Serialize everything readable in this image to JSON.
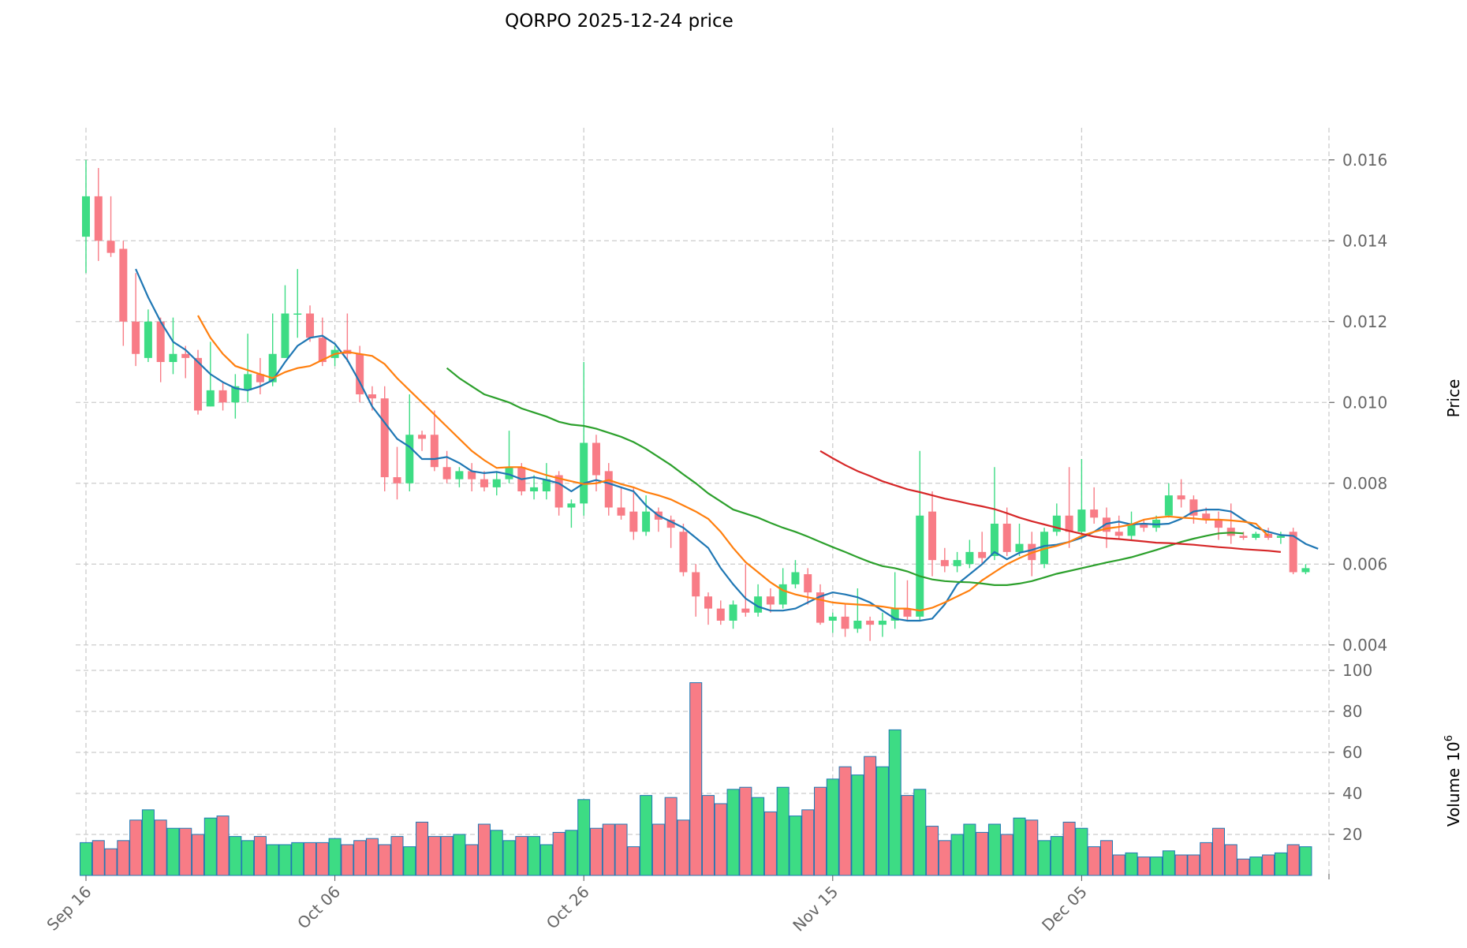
{
  "chart_data": {
    "type": "candlestick",
    "title": "QORPO  2025-12-24  price",
    "ylabel_price": "Price",
    "ylabel_volume": "Volume",
    "volume_unit": "10",
    "volume_exponent": "6",
    "x_tick_labels": [
      "Sep 16",
      "Oct 06",
      "Oct 26",
      "Nov 15",
      "Dec 05"
    ],
    "price_ticks": [
      "0.004",
      "0.006",
      "0.008",
      "0.010",
      "0.012",
      "0.014",
      "0.016"
    ],
    "volume_ticks": [
      "20",
      "40",
      "60",
      "80",
      "100"
    ],
    "price_range": [
      0.0038,
      0.0166
    ],
    "volume_range": [
      0,
      100
    ],
    "colors": {
      "up": "#3ddc84",
      "down": "#f87c86",
      "ma_short": "#1f77b4",
      "ma_mid": "#ff7f0e",
      "ma_long": "#2ca02c",
      "ma_longest": "#d62728"
    },
    "ohlcv": [
      [
        "Sep 16",
        0.0141,
        0.016,
        0.0132,
        0.0151,
        16
      ],
      [
        "Sep 17",
        0.0151,
        0.0158,
        0.0135,
        0.014,
        17
      ],
      [
        "Sep 18",
        0.014,
        0.0151,
        0.0136,
        0.0137,
        13
      ],
      [
        "Sep 19",
        0.0138,
        0.014,
        0.0114,
        0.012,
        17
      ],
      [
        "Sep 20",
        0.012,
        0.0132,
        0.0109,
        0.0112,
        27
      ],
      [
        "Sep 21",
        0.0111,
        0.0123,
        0.011,
        0.012,
        32
      ],
      [
        "Sep 22",
        0.012,
        0.0121,
        0.0105,
        0.011,
        27
      ],
      [
        "Sep 23",
        0.011,
        0.0121,
        0.0107,
        0.0112,
        23
      ],
      [
        "Sep 24",
        0.0112,
        0.0114,
        0.0106,
        0.0111,
        23
      ],
      [
        "Sep 25",
        0.0111,
        0.0113,
        0.0097,
        0.0098,
        20
      ],
      [
        "Sep 26",
        0.0099,
        0.0115,
        0.0099,
        0.0103,
        28
      ],
      [
        "Sep 27",
        0.0103,
        0.0105,
        0.0098,
        0.01,
        29
      ],
      [
        "Sep 28",
        0.01,
        0.0107,
        0.0096,
        0.0104,
        19
      ],
      [
        "Sep 29",
        0.0103,
        0.0117,
        0.01,
        0.0107,
        17
      ],
      [
        "Sep 30",
        0.0107,
        0.0111,
        0.0102,
        0.0105,
        19
      ],
      [
        "Oct 01",
        0.0105,
        0.0122,
        0.0104,
        0.0112,
        15
      ],
      [
        "Oct 02",
        0.0111,
        0.0129,
        0.0111,
        0.0122,
        15
      ],
      [
        "Oct 03",
        0.0122,
        0.0133,
        0.0116,
        0.0122,
        16
      ],
      [
        "Oct 04",
        0.0122,
        0.0124,
        0.0115,
        0.0116,
        16
      ],
      [
        "Oct 05",
        0.0116,
        0.0121,
        0.0109,
        0.011,
        16
      ],
      [
        "Oct 06",
        0.0111,
        0.0114,
        0.0109,
        0.0113,
        18
      ],
      [
        "Oct 07",
        0.0113,
        0.0122,
        0.011,
        0.0112,
        15
      ],
      [
        "Oct 08",
        0.0112,
        0.0114,
        0.01,
        0.0102,
        17
      ],
      [
        "Oct 09",
        0.0102,
        0.0104,
        0.0098,
        0.0101,
        18
      ],
      [
        "Oct 10",
        0.0101,
        0.0104,
        0.0078,
        0.00815,
        15
      ],
      [
        "Oct 11",
        0.00815,
        0.0089,
        0.0076,
        0.008,
        19
      ],
      [
        "Oct 12",
        0.008,
        0.0102,
        0.0078,
        0.0092,
        14
      ],
      [
        "Oct 13",
        0.0092,
        0.0093,
        0.0088,
        0.0091,
        26
      ],
      [
        "Oct 14",
        0.0092,
        0.0098,
        0.0083,
        0.0084,
        19
      ],
      [
        "Oct 15",
        0.0084,
        0.0088,
        0.008,
        0.0081,
        19
      ],
      [
        "Oct 16",
        0.0081,
        0.0084,
        0.0079,
        0.0083,
        20
      ],
      [
        "Oct 17",
        0.0083,
        0.0085,
        0.0078,
        0.0081,
        15
      ],
      [
        "Oct 18",
        0.0081,
        0.0083,
        0.0078,
        0.0079,
        25
      ],
      [
        "Oct 19",
        0.0079,
        0.0083,
        0.0077,
        0.0081,
        22
      ],
      [
        "Oct 20",
        0.0081,
        0.0093,
        0.008,
        0.0084,
        17
      ],
      [
        "Oct 21",
        0.0084,
        0.0085,
        0.0077,
        0.0078,
        19
      ],
      [
        "Oct 22",
        0.0078,
        0.0082,
        0.0076,
        0.0079,
        19
      ],
      [
        "Oct 23",
        0.0078,
        0.0085,
        0.0076,
        0.0081,
        15
      ],
      [
        "Oct 24",
        0.0082,
        0.0083,
        0.0072,
        0.0074,
        21
      ],
      [
        "Oct 25",
        0.0074,
        0.0076,
        0.0069,
        0.0075,
        22
      ],
      [
        "Oct 26",
        0.0075,
        0.011,
        0.0072,
        0.009,
        37
      ],
      [
        "Oct 27",
        0.009,
        0.0092,
        0.0078,
        0.0082,
        23
      ],
      [
        "Oct 28",
        0.0083,
        0.0085,
        0.0072,
        0.0074,
        25
      ],
      [
        "Oct 29",
        0.0074,
        0.0079,
        0.0071,
        0.0072,
        25
      ],
      [
        "Oct 30",
        0.0073,
        0.0079,
        0.0066,
        0.0068,
        14
      ],
      [
        "Oct 31",
        0.0068,
        0.0077,
        0.0067,
        0.0073,
        39
      ],
      [
        "Nov 01",
        0.0073,
        0.0074,
        0.0068,
        0.0071,
        25
      ],
      [
        "Nov 02",
        0.0071,
        0.0072,
        0.0064,
        0.0069,
        38
      ],
      [
        "Nov 03",
        0.0068,
        0.007,
        0.0057,
        0.0058,
        27
      ],
      [
        "Nov 04",
        0.0058,
        0.006,
        0.0047,
        0.0052,
        94
      ],
      [
        "Nov 05",
        0.0052,
        0.0053,
        0.0045,
        0.0049,
        39
      ],
      [
        "Nov 06",
        0.0049,
        0.0051,
        0.0045,
        0.0046,
        35
      ],
      [
        "Nov 07",
        0.0046,
        0.0051,
        0.0044,
        0.005,
        42
      ],
      [
        "Nov 08",
        0.0049,
        0.006,
        0.0047,
        0.0048,
        43
      ],
      [
        "Nov 09",
        0.0048,
        0.0055,
        0.0047,
        0.0052,
        38
      ],
      [
        "Nov 10",
        0.0052,
        0.0054,
        0.0048,
        0.005,
        31
      ],
      [
        "Nov 11",
        0.005,
        0.0059,
        0.0049,
        0.0055,
        43
      ],
      [
        "Nov 12",
        0.0055,
        0.0061,
        0.0054,
        0.0058,
        29
      ],
      [
        "Nov 13",
        0.00575,
        0.0059,
        0.005,
        0.0053,
        32
      ],
      [
        "Nov 14",
        0.0053,
        0.0055,
        0.0045,
        0.00455,
        43
      ],
      [
        "Nov 15",
        0.0046,
        0.0048,
        0.0043,
        0.0047,
        47
      ],
      [
        "Nov 16",
        0.0047,
        0.005,
        0.0042,
        0.0044,
        53
      ],
      [
        "Nov 17",
        0.0044,
        0.0054,
        0.0043,
        0.0046,
        49
      ],
      [
        "Nov 18",
        0.0046,
        0.0047,
        0.0041,
        0.0045,
        58
      ],
      [
        "Nov 19",
        0.0045,
        0.0048,
        0.0042,
        0.0046,
        53
      ],
      [
        "Nov 20",
        0.0046,
        0.0058,
        0.0044,
        0.0049,
        71
      ],
      [
        "Nov 21",
        0.0049,
        0.0056,
        0.0046,
        0.0047,
        39
      ],
      [
        "Nov 22",
        0.0047,
        0.0088,
        0.0046,
        0.0072,
        42
      ],
      [
        "Nov 23",
        0.0073,
        0.0078,
        0.0057,
        0.0061,
        24
      ],
      [
        "Nov 24",
        0.0061,
        0.0064,
        0.0058,
        0.00595,
        17
      ],
      [
        "Nov 25",
        0.00595,
        0.0063,
        0.0058,
        0.0061,
        20
      ],
      [
        "Nov 26",
        0.006,
        0.0066,
        0.0059,
        0.0063,
        25
      ],
      [
        "Nov 27",
        0.0063,
        0.0068,
        0.006,
        0.00615,
        21
      ],
      [
        "Nov 28",
        0.0062,
        0.0084,
        0.0061,
        0.007,
        25
      ],
      [
        "Nov 29",
        0.007,
        0.0074,
        0.0062,
        0.0063,
        20
      ],
      [
        "Nov 30",
        0.0063,
        0.007,
        0.0062,
        0.0065,
        28
      ],
      [
        "Dec 01",
        0.0065,
        0.0068,
        0.0057,
        0.0061,
        27
      ],
      [
        "Dec 02",
        0.006,
        0.0069,
        0.0059,
        0.0068,
        17
      ],
      [
        "Dec 03",
        0.0068,
        0.0075,
        0.0067,
        0.0072,
        19
      ],
      [
        "Dec 04",
        0.0072,
        0.0084,
        0.0064,
        0.0068,
        26
      ],
      [
        "Dec 05",
        0.0068,
        0.0086,
        0.0067,
        0.00735,
        23
      ],
      [
        "Dec 06",
        0.00735,
        0.0079,
        0.007,
        0.00715,
        14
      ],
      [
        "Dec 07",
        0.00715,
        0.0074,
        0.0064,
        0.0068,
        17
      ],
      [
        "Dec 08",
        0.0068,
        0.0072,
        0.0066,
        0.0067,
        10
      ],
      [
        "Dec 09",
        0.0067,
        0.0073,
        0.0066,
        0.007,
        11
      ],
      [
        "Dec 10",
        0.007,
        0.0071,
        0.0068,
        0.0069,
        9
      ],
      [
        "Dec 11",
        0.0069,
        0.0072,
        0.0068,
        0.0071,
        9
      ],
      [
        "Dec 12",
        0.0072,
        0.008,
        0.00715,
        0.0077,
        12
      ],
      [
        "Dec 13",
        0.0077,
        0.0081,
        0.0074,
        0.0076,
        10
      ],
      [
        "Dec 14",
        0.0076,
        0.0077,
        0.007,
        0.0072,
        10
      ],
      [
        "Dec 15",
        0.00725,
        0.0074,
        0.007,
        0.0071,
        16
      ],
      [
        "Dec 16",
        0.0071,
        0.0073,
        0.0066,
        0.0069,
        23
      ],
      [
        "Dec 17",
        0.0069,
        0.0075,
        0.0065,
        0.0067,
        15
      ],
      [
        "Dec 18",
        0.0067,
        0.0068,
        0.0066,
        0.00665,
        8
      ],
      [
        "Dec 19",
        0.00665,
        0.0068,
        0.0066,
        0.00675,
        9
      ],
      [
        "Dec 20",
        0.00675,
        0.0069,
        0.0066,
        0.00665,
        10
      ],
      [
        "Dec 21",
        0.00665,
        0.0068,
        0.0065,
        0.0067,
        11
      ],
      [
        "Dec 22",
        0.0068,
        0.0069,
        0.00575,
        0.0058,
        15
      ],
      [
        "Dec 23",
        0.0058,
        0.006,
        0.00575,
        0.0059,
        14
      ]
    ],
    "series": [
      {
        "name": "MA short",
        "color": "#1f77b4",
        "start_index": 4,
        "values": [
          0.0133,
          0.0126,
          0.012,
          0.0115,
          0.0113,
          0.011,
          0.0107,
          0.0105,
          0.01035,
          0.0103,
          0.0104,
          0.01055,
          0.011,
          0.0114,
          0.0116,
          0.01165,
          0.01145,
          0.01105,
          0.0105,
          0.0099,
          0.0095,
          0.0091,
          0.0089,
          0.0086,
          0.0086,
          0.00865,
          0.0085,
          0.0083,
          0.00825,
          0.00828,
          0.00822,
          0.0081,
          0.00815,
          0.00808,
          0.008,
          0.0078,
          0.008,
          0.00808,
          0.008,
          0.0079,
          0.0078,
          0.00745,
          0.0072,
          0.00705,
          0.0069,
          0.00665,
          0.0064,
          0.0059,
          0.0055,
          0.00515,
          0.00495,
          0.00485,
          0.00485,
          0.0049,
          0.00505,
          0.0052,
          0.0053,
          0.00525,
          0.00518,
          0.00505,
          0.00485,
          0.00465,
          0.0046,
          0.0046,
          0.00465,
          0.005,
          0.0055,
          0.00575,
          0.006,
          0.0063,
          0.00612,
          0.00628,
          0.00635,
          0.00645,
          0.00648,
          0.00655,
          0.00665,
          0.0068,
          0.007,
          0.00705,
          0.00698,
          0.007,
          0.00698,
          0.007,
          0.00712,
          0.0073,
          0.00735,
          0.00735,
          0.0073,
          0.0071,
          0.0069,
          0.0068,
          0.00672,
          0.0067,
          0.0065,
          0.00638
        ]
      },
      {
        "name": "MA mid",
        "color": "#ff7f0e",
        "start_index": 9,
        "values": [
          0.01215,
          0.0116,
          0.0112,
          0.0109,
          0.0108,
          0.0107,
          0.0106,
          0.01075,
          0.01085,
          0.0109,
          0.01105,
          0.0112,
          0.01125,
          0.0112,
          0.01115,
          0.01095,
          0.0106,
          0.0103,
          0.01,
          0.0097,
          0.0094,
          0.0091,
          0.0088,
          0.00857,
          0.00838,
          0.0084,
          0.0084,
          0.0083,
          0.0082,
          0.00812,
          0.00805,
          0.00798,
          0.008,
          0.00808,
          0.00798,
          0.0079,
          0.00778,
          0.0077,
          0.0076,
          0.00745,
          0.0073,
          0.00712,
          0.0068,
          0.0064,
          0.00605,
          0.0058,
          0.00555,
          0.00535,
          0.00525,
          0.00518,
          0.00512,
          0.00505,
          0.00502,
          0.005,
          0.00498,
          0.00495,
          0.0049,
          0.0049,
          0.00485,
          0.00492,
          0.00505,
          0.0052,
          0.00535,
          0.0056,
          0.0058,
          0.006,
          0.00615,
          0.00628,
          0.00638,
          0.00645,
          0.00655,
          0.0067,
          0.0068,
          0.00688,
          0.00692,
          0.00698,
          0.0071,
          0.00715,
          0.00718,
          0.00715,
          0.00713,
          0.0071,
          0.0071,
          0.00708,
          0.00705,
          0.007,
          0.0067
        ]
      },
      {
        "name": "MA long",
        "color": "#2ca02c",
        "start_index": 29,
        "values": [
          0.01085,
          0.0106,
          0.0104,
          0.0102,
          0.0101,
          0.01,
          0.00985,
          0.00975,
          0.00965,
          0.00952,
          0.00945,
          0.00942,
          0.00935,
          0.00925,
          0.00915,
          0.00902,
          0.00885,
          0.00865,
          0.00845,
          0.00822,
          0.008,
          0.00775,
          0.00755,
          0.00735,
          0.00725,
          0.00715,
          0.00702,
          0.0069,
          0.0068,
          0.00668,
          0.00655,
          0.00642,
          0.0063,
          0.00617,
          0.00605,
          0.00595,
          0.0059,
          0.00582,
          0.0057,
          0.00562,
          0.00558,
          0.00556,
          0.00555,
          0.00552,
          0.00548,
          0.00548,
          0.00552,
          0.00558,
          0.00567,
          0.00576,
          0.00583,
          0.0059,
          0.00597,
          0.00604,
          0.0061,
          0.00617,
          0.00626,
          0.00635,
          0.00645,
          0.00655,
          0.00663,
          0.0067,
          0.00676,
          0.00678,
          0.00676
        ]
      },
      {
        "name": "MA longest",
        "color": "#d62728",
        "start_index": 59,
        "values": [
          0.0088,
          0.00862,
          0.00845,
          0.0083,
          0.00818,
          0.00805,
          0.00795,
          0.00785,
          0.00778,
          0.0077,
          0.00762,
          0.00756,
          0.00749,
          0.00743,
          0.00736,
          0.00726,
          0.00715,
          0.00706,
          0.00698,
          0.0069,
          0.00682,
          0.00675,
          0.00668,
          0.00664,
          0.00662,
          0.00659,
          0.00656,
          0.00653,
          0.00652,
          0.0065,
          0.00648,
          0.00645,
          0.00642,
          0.0064,
          0.00637,
          0.00635,
          0.00633,
          0.0063
        ]
      }
    ]
  }
}
